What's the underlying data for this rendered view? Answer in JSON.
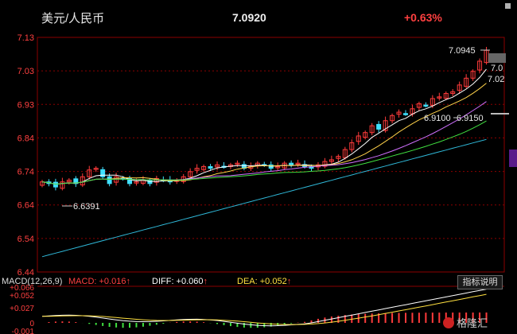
{
  "header": {
    "title": "美元/人民币",
    "price": "7.0920",
    "change": "+0.63%"
  },
  "colors": {
    "up": "#ff3b3b",
    "down": "#3fe0ff",
    "ma5": "#ffffff",
    "ma10": "#ffd24a",
    "ma20": "#d070ff",
    "ma30": "#40e040",
    "ma60": "#2fb8d8",
    "diff": "#ffffff",
    "dea": "#ffe040",
    "grid": "#8b0000"
  },
  "chart_data": [
    {
      "type": "candlestick",
      "title": "美元/人民币",
      "ylim": [
        6.44,
        7.13
      ],
      "y_ticks": [
        "7.13",
        "7.03",
        "6.93",
        "6.84",
        "6.74",
        "6.64",
        "6.54",
        "6.44"
      ],
      "annotations": {
        "high": "7.0945",
        "low": "6.6391",
        "mid_left": "6.9100",
        "mid_right": "6.9150",
        "right_tag_1": "7.0",
        "right_tag_2": "7.02"
      },
      "closes": [
        6.705,
        6.7,
        6.69,
        6.705,
        6.71,
        6.7,
        6.72,
        6.74,
        6.745,
        6.72,
        6.7,
        6.72,
        6.715,
        6.7,
        6.705,
        6.71,
        6.7,
        6.715,
        6.71,
        6.705,
        6.71,
        6.72,
        6.735,
        6.745,
        6.75,
        6.745,
        6.755,
        6.75,
        6.755,
        6.76,
        6.745,
        6.75,
        6.76,
        6.755,
        6.745,
        6.75,
        6.76,
        6.755,
        6.76,
        6.75,
        6.745,
        6.755,
        6.765,
        6.77,
        6.78,
        6.8,
        6.82,
        6.84,
        6.85,
        6.87,
        6.86,
        6.885,
        6.9,
        6.91,
        6.905,
        6.92,
        6.935,
        6.93,
        6.95,
        6.955,
        6.965,
        6.97,
        6.99,
        7.01,
        7.03,
        7.06,
        7.092
      ],
      "macd": {
        "params": "MACD(12,26,9)",
        "macd": "+0.016",
        "diff": "+0.060",
        "dea": "+0.052",
        "y_ticks": [
          "+0.066",
          "+0.052",
          "+0.027",
          "0",
          "-0.001"
        ]
      }
    }
  ],
  "ui": {
    "macd_label": "MACD(12,26,9)",
    "macd_val": "MACD: +0.016",
    "diff_val": "DIFF: +0.060",
    "dea_val": "DEA: +0.052",
    "arrow": "↑",
    "indicator_button": "指标说明",
    "watermark": "格隆汇"
  }
}
